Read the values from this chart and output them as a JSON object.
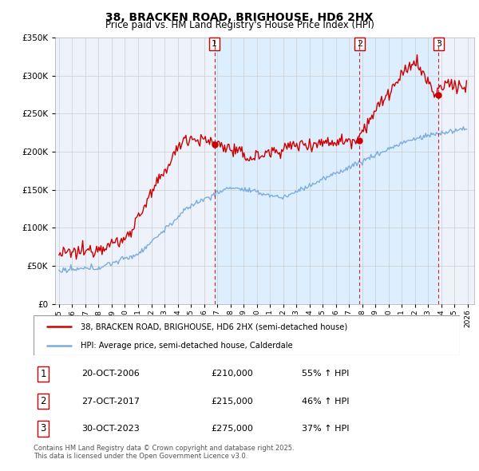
{
  "title": "38, BRACKEN ROAD, BRIGHOUSE, HD6 2HX",
  "subtitle": "Price paid vs. HM Land Registry's House Price Index (HPI)",
  "legend_line1": "38, BRACKEN ROAD, BRIGHOUSE, HD6 2HX (semi-detached house)",
  "legend_line2": "HPI: Average price, semi-detached house, Calderdale",
  "sale_label1": "20-OCT-2006",
  "sale_price1": "£210,000",
  "sale_hpi1": "55% ↑ HPI",
  "sale_label2": "27-OCT-2017",
  "sale_price2": "£215,000",
  "sale_hpi2": "46% ↑ HPI",
  "sale_label3": "30-OCT-2023",
  "sale_price3": "£275,000",
  "sale_hpi3": "37% ↑ HPI",
  "footer": "Contains HM Land Registry data © Crown copyright and database right 2025.\nThis data is licensed under the Open Government Licence v3.0.",
  "red_color": "#cc0000",
  "blue_color": "#7aadde",
  "shade_color": "#ddeeff",
  "background_color": "#eef3fb",
  "grid_color": "#cccccc",
  "ylim": [
    0,
    350000
  ],
  "xlim_start": 1994.7,
  "xlim_end": 2026.5,
  "sale1_x": 2006.79,
  "sale1_y": 210000,
  "sale2_x": 2017.79,
  "sale2_y": 215000,
  "sale3_x": 2023.79,
  "sale3_y": 275000
}
